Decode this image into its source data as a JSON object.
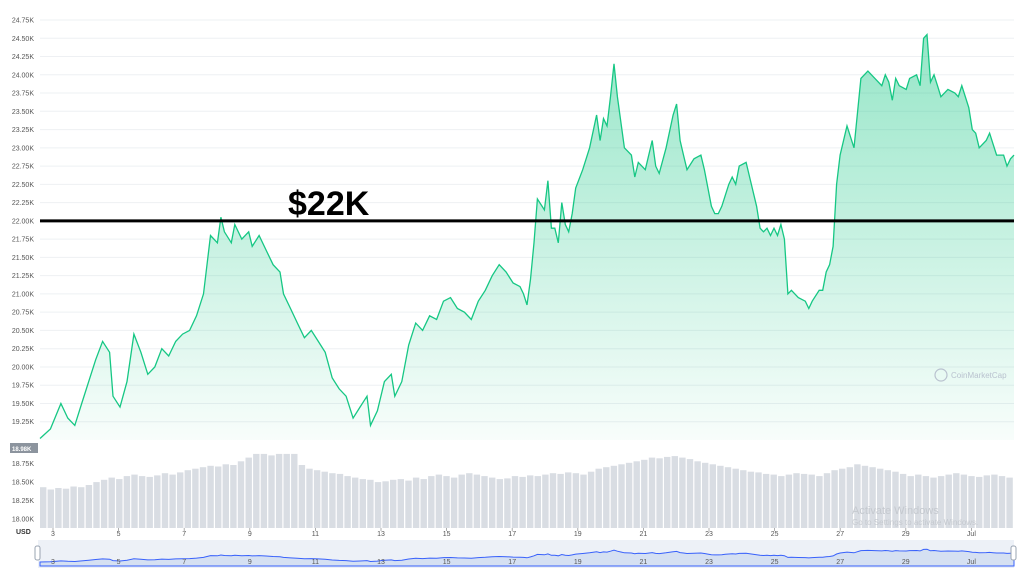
{
  "chart_data": {
    "type": "area",
    "title": "",
    "xlabel": "",
    "ylabel": "",
    "currency": "USD",
    "y_ticks": [
      "24.75K",
      "24.50K",
      "24.25K",
      "24.00K",
      "23.75K",
      "23.50K",
      "23.25K",
      "23.00K",
      "22.75K",
      "22.50K",
      "22.25K",
      "22.00K",
      "21.75K",
      "21.50K",
      "21.25K",
      "21.00K",
      "20.75K",
      "20.50K",
      "20.25K",
      "20.00K",
      "19.75K",
      "19.50K",
      "19.25K"
    ],
    "ylim": [
      19000,
      24750
    ],
    "x_ticks": [
      "3",
      "5",
      "7",
      "9",
      "11",
      "13",
      "15",
      "17",
      "19",
      "21",
      "23",
      "25",
      "27",
      "29",
      "Jul"
    ],
    "current_low_label": "18.98K",
    "volume_ticks": [
      "18.75K",
      "18.50K",
      "18.25K",
      "18.00K"
    ],
    "series": [
      {
        "values": [
          [
            0,
            19020
          ],
          [
            0.3,
            19150
          ],
          [
            0.6,
            19500
          ],
          [
            0.8,
            19300
          ],
          [
            1.0,
            19200
          ],
          [
            1.2,
            19500
          ],
          [
            1.4,
            19800
          ],
          [
            1.6,
            20100
          ],
          [
            1.8,
            20350
          ],
          [
            2.0,
            20200
          ],
          [
            2.1,
            19600
          ],
          [
            2.3,
            19450
          ],
          [
            2.5,
            19800
          ],
          [
            2.7,
            20450
          ],
          [
            2.9,
            20200
          ],
          [
            3.1,
            19900
          ],
          [
            3.3,
            20000
          ],
          [
            3.5,
            20250
          ],
          [
            3.7,
            20150
          ],
          [
            3.9,
            20350
          ],
          [
            4.1,
            20450
          ],
          [
            4.3,
            20500
          ],
          [
            4.5,
            20700
          ],
          [
            4.7,
            21000
          ],
          [
            4.9,
            21800
          ],
          [
            5.1,
            21700
          ],
          [
            5.2,
            22050
          ],
          [
            5.3,
            21850
          ],
          [
            5.5,
            21700
          ],
          [
            5.6,
            21950
          ],
          [
            5.8,
            21750
          ],
          [
            6.0,
            21850
          ],
          [
            6.1,
            21650
          ],
          [
            6.3,
            21800
          ],
          [
            6.5,
            21600
          ],
          [
            6.7,
            21400
          ],
          [
            6.9,
            21300
          ],
          [
            7.0,
            21000
          ],
          [
            7.2,
            20800
          ],
          [
            7.4,
            20600
          ],
          [
            7.6,
            20400
          ],
          [
            7.8,
            20500
          ],
          [
            8.0,
            20350
          ],
          [
            8.2,
            20200
          ],
          [
            8.4,
            19850
          ],
          [
            8.6,
            19700
          ],
          [
            8.8,
            19600
          ],
          [
            9.0,
            19300
          ],
          [
            9.2,
            19450
          ],
          [
            9.4,
            19600
          ],
          [
            9.5,
            19200
          ],
          [
            9.7,
            19400
          ],
          [
            9.9,
            19800
          ],
          [
            10.1,
            19900
          ],
          [
            10.2,
            19600
          ],
          [
            10.4,
            19800
          ],
          [
            10.6,
            20300
          ],
          [
            10.8,
            20600
          ],
          [
            11.0,
            20500
          ],
          [
            11.2,
            20700
          ],
          [
            11.4,
            20650
          ],
          [
            11.6,
            20900
          ],
          [
            11.8,
            20950
          ],
          [
            12.0,
            20800
          ],
          [
            12.2,
            20750
          ],
          [
            12.4,
            20650
          ],
          [
            12.6,
            20900
          ],
          [
            12.8,
            21050
          ],
          [
            13.0,
            21250
          ],
          [
            13.2,
            21400
          ],
          [
            13.4,
            21300
          ],
          [
            13.6,
            21150
          ],
          [
            13.8,
            21100
          ],
          [
            13.9,
            21000
          ],
          [
            14.0,
            20850
          ],
          [
            14.1,
            21200
          ],
          [
            14.2,
            21700
          ],
          [
            14.3,
            22300
          ],
          [
            14.5,
            22150
          ],
          [
            14.6,
            22550
          ],
          [
            14.7,
            21900
          ],
          [
            14.8,
            21900
          ],
          [
            14.9,
            21700
          ],
          [
            15.0,
            22250
          ],
          [
            15.1,
            21950
          ],
          [
            15.2,
            21850
          ],
          [
            15.3,
            22100
          ],
          [
            15.4,
            22450
          ],
          [
            15.6,
            22700
          ],
          [
            15.8,
            23000
          ],
          [
            16.0,
            23450
          ],
          [
            16.1,
            23100
          ],
          [
            16.2,
            23400
          ],
          [
            16.3,
            23300
          ],
          [
            16.4,
            23700
          ],
          [
            16.5,
            24150
          ],
          [
            16.6,
            23700
          ],
          [
            16.7,
            23350
          ],
          [
            16.8,
            23000
          ],
          [
            17.0,
            22900
          ],
          [
            17.1,
            22600
          ],
          [
            17.2,
            22800
          ],
          [
            17.4,
            22700
          ],
          [
            17.6,
            23100
          ],
          [
            17.7,
            22750
          ],
          [
            17.8,
            22650
          ],
          [
            18.0,
            23000
          ],
          [
            18.2,
            23450
          ],
          [
            18.3,
            23600
          ],
          [
            18.4,
            23100
          ],
          [
            18.5,
            22900
          ],
          [
            18.6,
            22700
          ],
          [
            18.8,
            22850
          ],
          [
            19.0,
            22900
          ],
          [
            19.1,
            22700
          ],
          [
            19.2,
            22450
          ],
          [
            19.3,
            22200
          ],
          [
            19.4,
            22100
          ],
          [
            19.5,
            22100
          ],
          [
            19.6,
            22200
          ],
          [
            19.7,
            22350
          ],
          [
            19.8,
            22500
          ],
          [
            19.9,
            22600
          ],
          [
            20.0,
            22500
          ],
          [
            20.1,
            22750
          ],
          [
            20.3,
            22800
          ],
          [
            20.4,
            22600
          ],
          [
            20.6,
            22200
          ],
          [
            20.7,
            21900
          ],
          [
            20.8,
            21850
          ],
          [
            20.9,
            21900
          ],
          [
            21.0,
            21800
          ],
          [
            21.1,
            21900
          ],
          [
            21.2,
            21800
          ],
          [
            21.3,
            21950
          ],
          [
            21.4,
            21750
          ],
          [
            21.5,
            21000
          ],
          [
            21.6,
            21050
          ],
          [
            21.8,
            20950
          ],
          [
            22.0,
            20900
          ],
          [
            22.1,
            20800
          ],
          [
            22.2,
            20900
          ],
          [
            22.4,
            21050
          ],
          [
            22.5,
            21050
          ],
          [
            22.6,
            21300
          ],
          [
            22.7,
            21400
          ],
          [
            22.8,
            21650
          ],
          [
            22.9,
            22500
          ],
          [
            23.0,
            22900
          ],
          [
            23.2,
            23300
          ],
          [
            23.4,
            23000
          ],
          [
            23.6,
            23950
          ],
          [
            23.8,
            24050
          ],
          [
            24.0,
            23950
          ],
          [
            24.2,
            23850
          ],
          [
            24.3,
            24000
          ],
          [
            24.4,
            23900
          ],
          [
            24.5,
            23650
          ],
          [
            24.6,
            23950
          ],
          [
            24.7,
            23850
          ],
          [
            24.9,
            23800
          ],
          [
            25.0,
            23950
          ],
          [
            25.2,
            24000
          ],
          [
            25.3,
            23850
          ],
          [
            25.4,
            24500
          ],
          [
            25.5,
            24550
          ],
          [
            25.6,
            23900
          ],
          [
            25.7,
            24000
          ],
          [
            25.8,
            23850
          ],
          [
            25.9,
            23700
          ],
          [
            26.1,
            23800
          ],
          [
            26.3,
            23750
          ],
          [
            26.4,
            23700
          ],
          [
            26.5,
            23850
          ],
          [
            26.7,
            23550
          ],
          [
            26.8,
            23250
          ],
          [
            26.9,
            23200
          ],
          [
            27.0,
            23000
          ],
          [
            27.2,
            23100
          ],
          [
            27.3,
            23200
          ],
          [
            27.4,
            23050
          ],
          [
            27.5,
            22900
          ],
          [
            27.7,
            22900
          ],
          [
            27.8,
            22750
          ],
          [
            27.9,
            22850
          ],
          [
            28.0,
            22900
          ]
        ]
      }
    ],
    "volume": [
      0.55,
      0.52,
      0.54,
      0.53,
      0.56,
      0.55,
      0.58,
      0.62,
      0.65,
      0.68,
      0.66,
      0.7,
      0.72,
      0.7,
      0.69,
      0.71,
      0.74,
      0.72,
      0.75,
      0.78,
      0.8,
      0.82,
      0.84,
      0.83,
      0.86,
      0.85,
      0.9,
      0.95,
      1.0,
      1.0,
      0.98,
      1.0,
      1.0,
      1.0,
      0.85,
      0.8,
      0.78,
      0.76,
      0.74,
      0.73,
      0.7,
      0.68,
      0.66,
      0.65,
      0.62,
      0.63,
      0.65,
      0.66,
      0.64,
      0.68,
      0.66,
      0.7,
      0.72,
      0.7,
      0.68,
      0.72,
      0.74,
      0.72,
      0.7,
      0.68,
      0.66,
      0.67,
      0.7,
      0.69,
      0.71,
      0.7,
      0.72,
      0.74,
      0.73,
      0.75,
      0.74,
      0.72,
      0.76,
      0.8,
      0.82,
      0.84,
      0.86,
      0.88,
      0.9,
      0.92,
      0.95,
      0.94,
      0.96,
      0.97,
      0.95,
      0.93,
      0.9,
      0.88,
      0.86,
      0.84,
      0.82,
      0.8,
      0.78,
      0.76,
      0.75,
      0.73,
      0.72,
      0.7,
      0.72,
      0.74,
      0.73,
      0.72,
      0.7,
      0.74,
      0.78,
      0.8,
      0.82,
      0.86,
      0.84,
      0.82,
      0.8,
      0.78,
      0.76,
      0.73,
      0.7,
      0.72,
      0.7,
      0.68,
      0.7,
      0.72,
      0.74,
      0.72,
      0.7,
      0.69,
      0.71,
      0.72,
      0.7,
      0.68
    ]
  },
  "annotation": {
    "label": "$22K",
    "value": 22000
  },
  "watermark": {
    "text": "CoinMarketCap",
    "logo": "CMC"
  },
  "activate_windows": {
    "title": "Activate Windows",
    "subtitle": "Go to Settings to activate Windows."
  },
  "colors": {
    "line": "#16c784",
    "fill_top": "#16c784",
    "volume": "#d9dde3",
    "navigator": "#dce6f5",
    "navigator_line": "#3861fb",
    "annotation": "#000000"
  }
}
